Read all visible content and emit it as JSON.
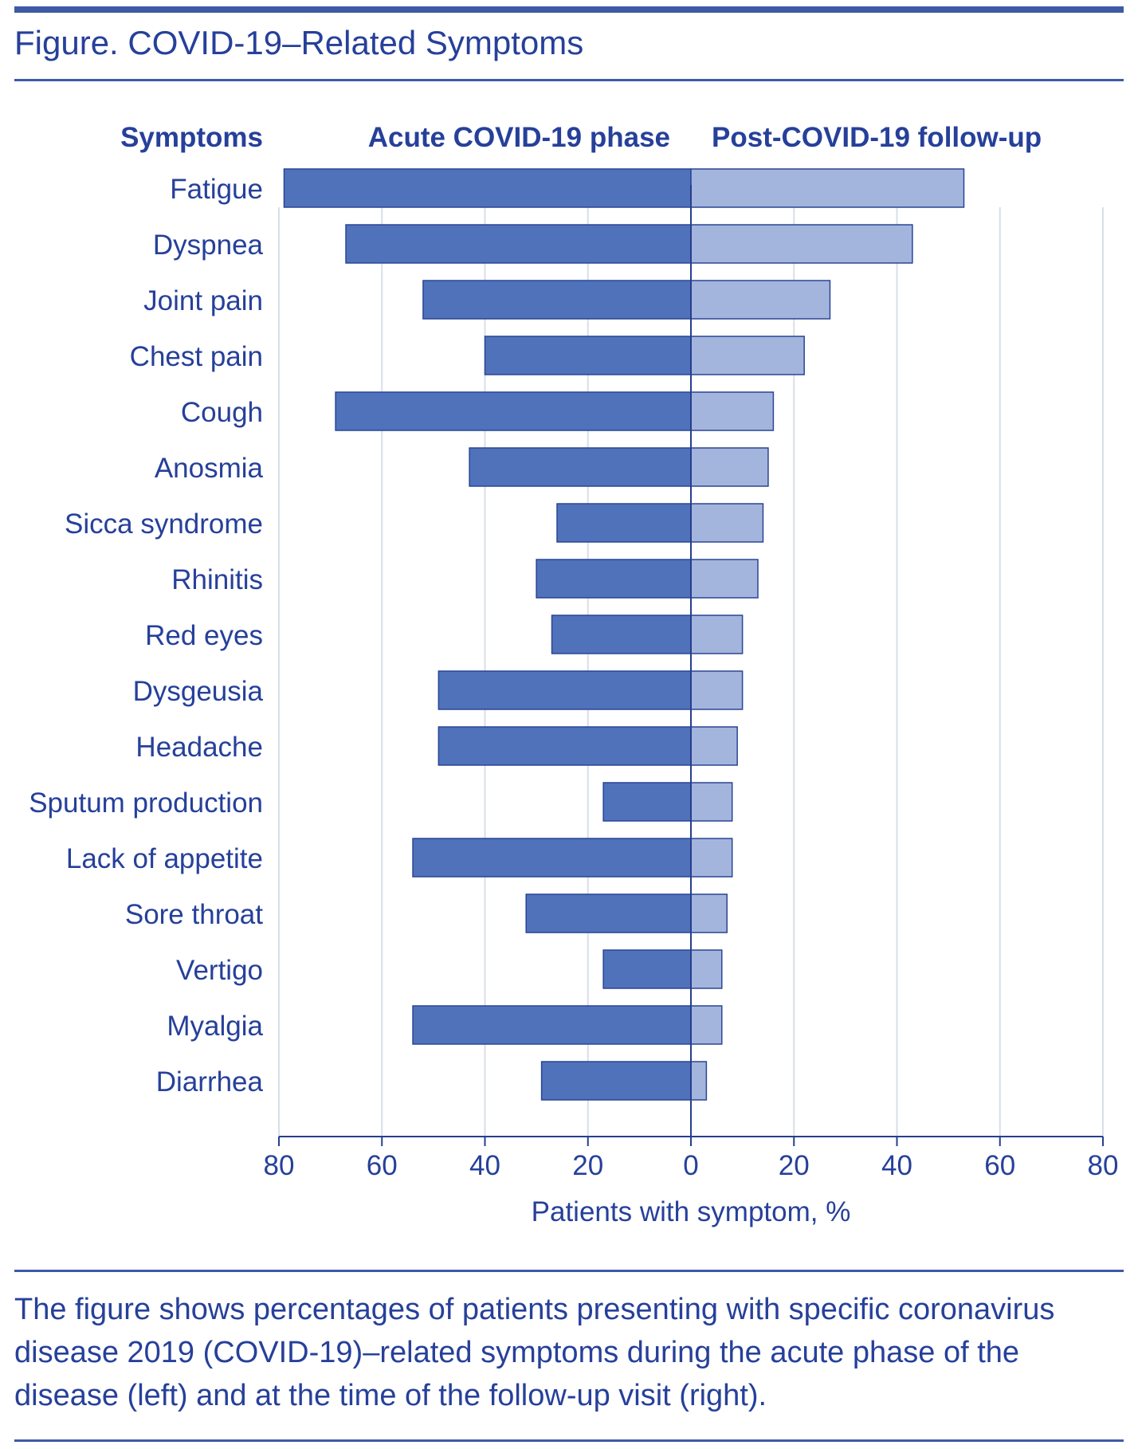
{
  "figure": {
    "title": "Figure. COVID-19–Related Symptoms",
    "caption": "The figure shows percentages of patients presenting with specific coronavirus disease 2019 (COVID-19)–related symptoms during the acute phase of the disease (left) and at the time of the follow-up visit (right)."
  },
  "chart_data": {
    "type": "bar",
    "orientation": "horizontal-diverging",
    "column_header": "Symptoms",
    "categories": [
      "Fatigue",
      "Dyspnea",
      "Joint pain",
      "Chest pain",
      "Cough",
      "Anosmia",
      "Sicca syndrome",
      "Rhinitis",
      "Red eyes",
      "Dysgeusia",
      "Headache",
      "Sputum production",
      "Lack of appetite",
      "Sore throat",
      "Vertigo",
      "Myalgia",
      "Diarrhea"
    ],
    "series": [
      {
        "name": "Acute COVID-19 phase",
        "side": "left",
        "color": "#4f72bb",
        "values": [
          79,
          67,
          52,
          40,
          69,
          43,
          26,
          30,
          27,
          49,
          49,
          17,
          54,
          32,
          17,
          54,
          29
        ]
      },
      {
        "name": "Post-COVID-19 follow-up",
        "side": "right",
        "color": "#a4b5dd",
        "values": [
          53,
          43,
          27,
          22,
          16,
          15,
          14,
          13,
          10,
          10,
          9,
          8,
          8,
          7,
          6,
          6,
          3
        ]
      }
    ],
    "xlabel": "Patients with symptom, %",
    "xlim": [
      0,
      80
    ],
    "xticks": [
      80,
      60,
      40,
      20,
      0,
      20,
      40,
      60,
      80
    ],
    "grid": true,
    "colors": {
      "text": "#26409a",
      "axis": "#253f8f",
      "grid": "#d9dee9",
      "bar_stroke": "#2a4594"
    }
  }
}
